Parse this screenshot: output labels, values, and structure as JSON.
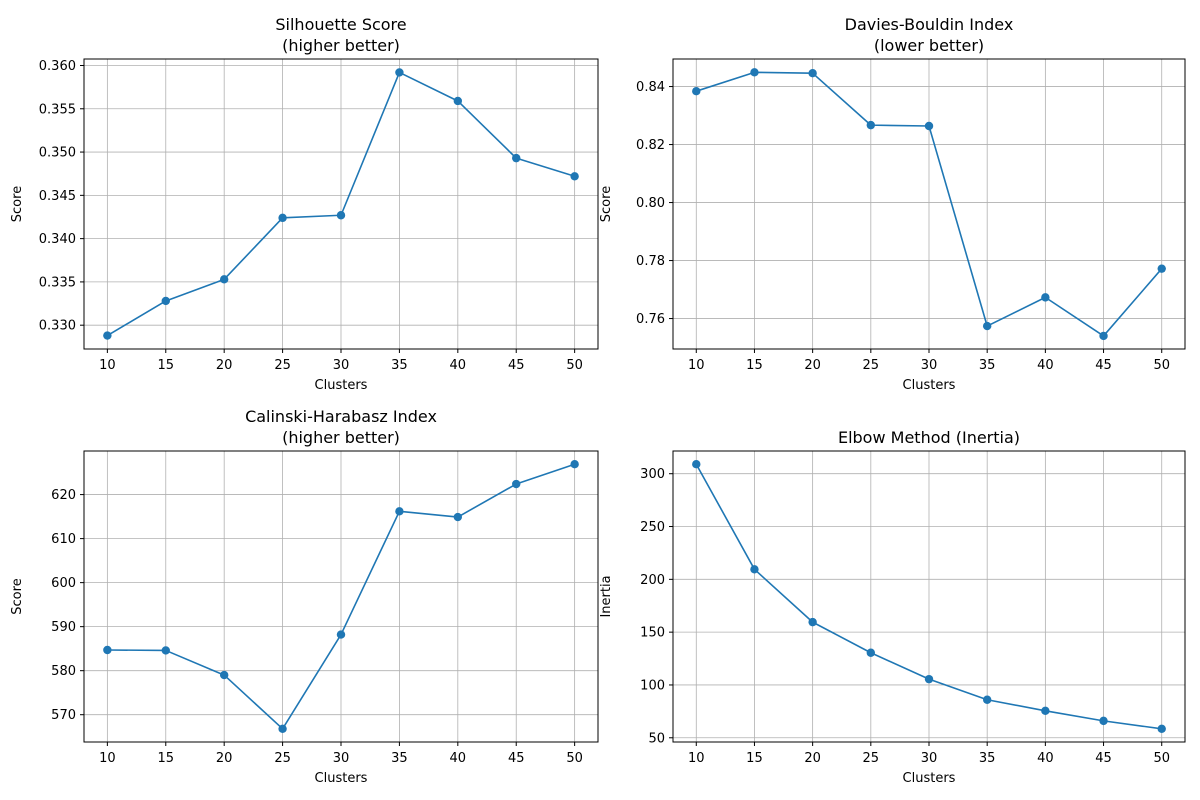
{
  "chart_data": [
    {
      "type": "line",
      "title": [
        "Silhouette Score",
        "(higher better)"
      ],
      "xlabel": "Clusters",
      "ylabel": "Score",
      "x": [
        10,
        15,
        20,
        25,
        30,
        35,
        40,
        45,
        50
      ],
      "y": [
        0.3288,
        0.3328,
        0.3353,
        0.3424,
        0.3427,
        0.3592,
        0.3559,
        0.3493,
        0.3472
      ],
      "xlim": [
        8,
        52
      ],
      "ylim": [
        0.32725,
        0.36075
      ],
      "xticks": [
        10,
        15,
        20,
        25,
        30,
        35,
        40,
        45,
        50
      ],
      "yticks": [
        0.33,
        0.335,
        0.34,
        0.345,
        0.35,
        0.355,
        0.36
      ],
      "ytick_labels": [
        "0.330",
        "0.335",
        "0.340",
        "0.345",
        "0.350",
        "0.355",
        "0.360"
      ],
      "grid": true,
      "color": "#1f77b4",
      "marker": "circle"
    },
    {
      "type": "line",
      "title": [
        "Davies-Bouldin Index",
        "(lower better)"
      ],
      "xlabel": "Clusters",
      "ylabel": "Score",
      "x": [
        10,
        15,
        20,
        25,
        30,
        35,
        40,
        45,
        50
      ],
      "y": [
        0.8384,
        0.8449,
        0.8446,
        0.8267,
        0.8264,
        0.7574,
        0.7673,
        0.754,
        0.7772
      ],
      "xlim": [
        8,
        52
      ],
      "ylim": [
        0.7495,
        0.8495
      ],
      "xticks": [
        10,
        15,
        20,
        25,
        30,
        35,
        40,
        45,
        50
      ],
      "yticks": [
        0.76,
        0.78,
        0.8,
        0.82,
        0.84
      ],
      "ytick_labels": [
        "0.76",
        "0.78",
        "0.80",
        "0.82",
        "0.84"
      ],
      "grid": true,
      "color": "#1f77b4",
      "marker": "circle"
    },
    {
      "type": "line",
      "title": [
        "Calinski-Harabasz Index",
        "(higher better)"
      ],
      "xlabel": "Clusters",
      "ylabel": "Score",
      "x": [
        10,
        15,
        20,
        25,
        30,
        35,
        40,
        45,
        50
      ],
      "y": [
        584.7,
        584.6,
        579.0,
        566.8,
        588.2,
        616.2,
        614.9,
        622.4,
        626.9
      ],
      "xlim": [
        8,
        52
      ],
      "ylim": [
        563.8,
        629.9
      ],
      "xticks": [
        10,
        15,
        20,
        25,
        30,
        35,
        40,
        45,
        50
      ],
      "yticks": [
        570,
        580,
        590,
        600,
        610,
        620
      ],
      "ytick_labels": [
        "570",
        "580",
        "590",
        "600",
        "610",
        "620"
      ],
      "grid": true,
      "color": "#1f77b4",
      "marker": "circle"
    },
    {
      "type": "line",
      "title": [
        "Elbow Method (Inertia)"
      ],
      "xlabel": "Clusters",
      "ylabel": "Inertia",
      "x": [
        10,
        15,
        20,
        25,
        30,
        35,
        40,
        45,
        50
      ],
      "y": [
        309,
        209.5,
        159.5,
        130.5,
        105.5,
        86,
        75.5,
        66,
        58.5
      ],
      "xlim": [
        8,
        52
      ],
      "ylim": [
        46,
        321.5
      ],
      "xticks": [
        10,
        15,
        20,
        25,
        30,
        35,
        40,
        45,
        50
      ],
      "yticks": [
        50,
        100,
        150,
        200,
        250,
        300
      ],
      "ytick_labels": [
        "50",
        "100",
        "150",
        "200",
        "250",
        "300"
      ],
      "grid": true,
      "color": "#1f77b4",
      "marker": "circle"
    }
  ]
}
